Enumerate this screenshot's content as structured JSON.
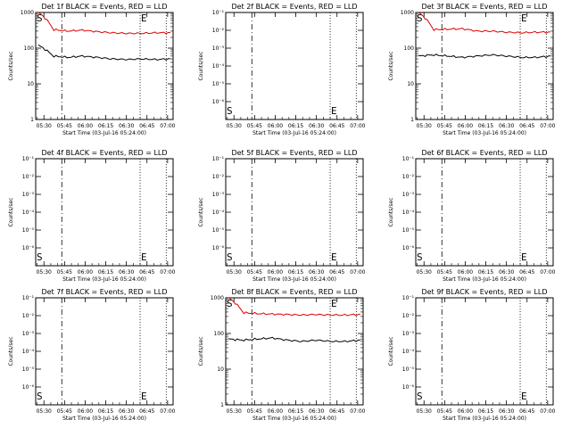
{
  "page": {
    "background": "#ffffff"
  },
  "colors": {
    "events": "#000000",
    "lld": "#e00000",
    "frame": "#000000"
  },
  "common": {
    "ylabel": "Counts/sec",
    "xlabel": "Start Time (03-Jul-16 05:24:00)",
    "xticks": [
      "05:30",
      "05:45",
      "06:00",
      "06:15",
      "06:30",
      "06:45",
      "07:00"
    ],
    "yticks_linear": [
      "1",
      "10",
      "100",
      "1000"
    ],
    "yticks_empty": [
      "10⁻¹",
      "10⁻²",
      "10⁻³",
      "10⁻⁴",
      "10⁻⁵",
      "10⁻⁶"
    ],
    "marker_start": "S",
    "marker_end": "E"
  },
  "chart_data": [
    {
      "type": "line",
      "title": "Det 1f BLACK = Events, RED = LLD",
      "ylabel": "Counts/sec",
      "xlabel": "Start Time (03-Jul-16 05:24:00)",
      "scale": "log",
      "ylim": [
        1,
        1000
      ],
      "has_data": true,
      "series": [
        {
          "name": "Events",
          "color": "#000000",
          "values": [
            120,
            60,
            55,
            60,
            55,
            50,
            48,
            50,
            48,
            50
          ]
        },
        {
          "name": "LLD",
          "color": "#e00000",
          "values": [
            1000,
            330,
            300,
            320,
            290,
            270,
            260,
            260,
            270,
            270
          ]
        }
      ],
      "x_range": [
        "05:24",
        "07:04"
      ]
    },
    {
      "type": "line",
      "title": "Det 2f BLACK = Events, RED = LLD",
      "ylabel": "Counts/sec",
      "xlabel": "Start Time (03-Jul-16 05:24:00)",
      "scale": "log",
      "ylim": [
        1e-07,
        0.1
      ],
      "has_data": false,
      "series": []
    },
    {
      "type": "line",
      "title": "Det 3f BLACK = Events, RED = LLD",
      "ylabel": "Counts/sec",
      "xlabel": "Start Time (03-Jul-16 05:24:00)",
      "scale": "log",
      "ylim": [
        1,
        1000
      ],
      "has_data": true,
      "series": [
        {
          "name": "Events",
          "color": "#000000",
          "values": [
            60,
            65,
            60,
            55,
            60,
            65,
            60,
            55,
            55,
            60
          ]
        },
        {
          "name": "LLD",
          "color": "#e00000",
          "values": [
            1000,
            330,
            340,
            350,
            300,
            300,
            280,
            270,
            280,
            280
          ]
        }
      ],
      "x_range": [
        "05:24",
        "07:04"
      ]
    },
    {
      "type": "line",
      "title": "Det 4f BLACK = Events, RED = LLD",
      "ylabel": "Counts/sec",
      "xlabel": "Start Time (03-Jul-16 05:24:00)",
      "scale": "log",
      "ylim": [
        1e-07,
        0.1
      ],
      "has_data": false,
      "series": []
    },
    {
      "type": "line",
      "title": "Det 5f BLACK = Events, RED = LLD",
      "ylabel": "Counts/sec",
      "xlabel": "Start Time (03-Jul-16 05:24:00)",
      "scale": "log",
      "ylim": [
        1e-07,
        0.1
      ],
      "has_data": false,
      "series": []
    },
    {
      "type": "line",
      "title": "Det 6f BLACK = Events, RED = LLD",
      "ylabel": "Counts/sec",
      "xlabel": "Start Time (03-Jul-16 05:24:00)",
      "scale": "log",
      "ylim": [
        1e-07,
        0.1
      ],
      "has_data": false,
      "series": []
    },
    {
      "type": "line",
      "title": "Det 7f BLACK = Events, RED = LLD",
      "ylabel": "Counts/sec",
      "xlabel": "Start Time (03-Jul-16 05:24:00)",
      "scale": "log",
      "ylim": [
        1e-07,
        0.1
      ],
      "has_data": false,
      "series": []
    },
    {
      "type": "line",
      "title": "Det 8f BLACK = Events, RED = LLD",
      "ylabel": "Counts/sec",
      "xlabel": "Start Time (03-Jul-16 05:24:00)",
      "scale": "log",
      "ylim": [
        1,
        1000
      ],
      "has_data": true,
      "series": [
        {
          "name": "Events",
          "color": "#000000",
          "values": [
            70,
            65,
            70,
            75,
            65,
            60,
            65,
            60,
            60,
            65
          ]
        },
        {
          "name": "LLD",
          "color": "#e00000",
          "values": [
            1000,
            380,
            360,
            350,
            340,
            330,
            340,
            330,
            330,
            340
          ]
        }
      ],
      "x_range": [
        "05:24",
        "07:04"
      ]
    },
    {
      "type": "line",
      "title": "Det 9f BLACK = Events, RED = LLD",
      "ylabel": "Counts/sec",
      "xlabel": "Start Time (03-Jul-16 05:24:00)",
      "scale": "log",
      "ylim": [
        1e-07,
        0.1
      ],
      "has_data": false,
      "series": []
    }
  ]
}
